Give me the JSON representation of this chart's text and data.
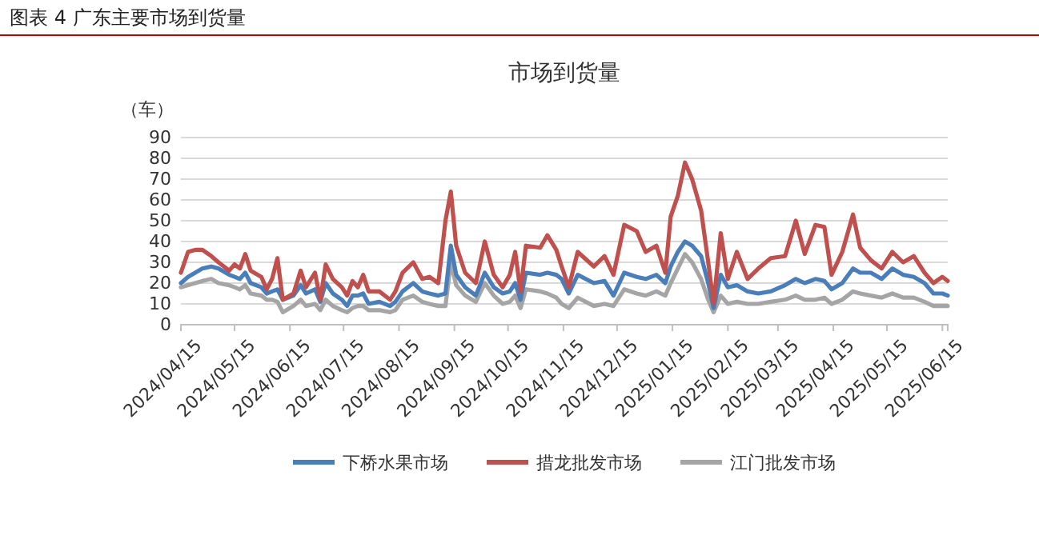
{
  "chart_data": {
    "type": "line",
    "title": "图表 4 广东主要市场到货量",
    "subtitle": "市场到货量",
    "ylabel": "（车）",
    "x": [
      "2024-04-15",
      "2024-04-19",
      "2024-04-23",
      "2024-04-27",
      "2024-05-02",
      "2024-05-06",
      "2024-05-12",
      "2024-05-15",
      "2024-05-18",
      "2024-05-21",
      "2024-05-24",
      "2024-05-30",
      "2024-06-02",
      "2024-06-05",
      "2024-06-08",
      "2024-06-11",
      "2024-06-17",
      "2024-06-21",
      "2024-06-24",
      "2024-06-29",
      "2024-07-02",
      "2024-07-05",
      "2024-07-09",
      "2024-07-14",
      "2024-07-17",
      "2024-07-20",
      "2024-07-23",
      "2024-07-26",
      "2024-07-29",
      "2024-08-04",
      "2024-08-10",
      "2024-08-13",
      "2024-08-17",
      "2024-08-23",
      "2024-08-28",
      "2024-09-01",
      "2024-09-06",
      "2024-09-10",
      "2024-09-13",
      "2024-09-16",
      "2024-09-21",
      "2024-09-27",
      "2024-10-02",
      "2024-10-07",
      "2024-10-12",
      "2024-10-16",
      "2024-10-19",
      "2024-10-22",
      "2024-10-25",
      "2024-11-02",
      "2024-11-06",
      "2024-11-11",
      "2024-11-14",
      "2024-11-18",
      "2024-11-23",
      "2024-12-02",
      "2024-12-08",
      "2024-12-13",
      "2024-12-19",
      "2024-12-26",
      "2024-12-31",
      "2025-01-06",
      "2025-01-11",
      "2025-01-14",
      "2025-01-18",
      "2025-01-22",
      "2025-01-26",
      "2025-01-31",
      "2025-02-04",
      "2025-02-07",
      "2025-02-11",
      "2025-02-15",
      "2025-02-20",
      "2025-02-26",
      "2025-03-04",
      "2025-03-11",
      "2025-03-19",
      "2025-03-25",
      "2025-03-30",
      "2025-04-05",
      "2025-04-10",
      "2025-04-14",
      "2025-04-20",
      "2025-04-26",
      "2025-04-30",
      "2025-05-06",
      "2025-05-12",
      "2025-05-18",
      "2025-05-24",
      "2025-05-30",
      "2025-06-05",
      "2025-06-10",
      "2025-06-15",
      "2025-06-18"
    ],
    "series": [
      {
        "name": "下桥水果市场",
        "color": "#4a7ebb",
        "values": [
          20,
          23,
          25,
          27,
          28,
          27,
          24,
          23,
          22,
          25,
          20,
          18,
          15,
          16,
          17,
          12,
          14,
          19,
          15,
          17,
          11,
          20,
          15,
          12,
          9,
          14,
          14,
          15,
          10,
          11,
          9,
          11,
          16,
          20,
          16,
          15,
          14,
          15,
          38,
          24,
          18,
          14,
          25,
          18,
          15,
          16,
          20,
          12,
          25,
          24,
          25,
          24,
          22,
          15,
          24,
          20,
          21,
          14,
          25,
          23,
          22,
          24,
          20,
          28,
          35,
          40,
          38,
          33,
          20,
          8,
          24,
          18,
          19,
          16,
          15,
          16,
          19,
          22,
          20,
          22,
          21,
          17,
          20,
          27,
          25,
          25,
          22,
          27,
          24,
          23,
          20,
          15,
          15,
          14
        ]
      },
      {
        "name": "措龙批发市场",
        "color": "#c0504d",
        "values": [
          25,
          35,
          36,
          36,
          33,
          30,
          26,
          29,
          27,
          34,
          26,
          23,
          17,
          22,
          32,
          12,
          15,
          26,
          18,
          25,
          12,
          29,
          22,
          18,
          14,
          21,
          18,
          24,
          16,
          16,
          12,
          16,
          25,
          30,
          22,
          23,
          20,
          50,
          64,
          38,
          25,
          20,
          40,
          24,
          18,
          24,
          35,
          16,
          38,
          37,
          43,
          36,
          28,
          18,
          35,
          28,
          33,
          24,
          48,
          45,
          35,
          38,
          25,
          52,
          62,
          78,
          70,
          55,
          30,
          10,
          44,
          22,
          35,
          22,
          27,
          32,
          33,
          50,
          34,
          48,
          47,
          24,
          35,
          53,
          37,
          31,
          27,
          35,
          30,
          33,
          25,
          20,
          23,
          21
        ]
      },
      {
        "name": "江门批发市场",
        "color": "#a5a5a5",
        "values": [
          18,
          19,
          20,
          21,
          22,
          20,
          19,
          18,
          17,
          19,
          15,
          14,
          12,
          12,
          11,
          6,
          9,
          12,
          9,
          10,
          7,
          12,
          9,
          7,
          6,
          8,
          9,
          9,
          7,
          7,
          6,
          7,
          12,
          14,
          11,
          10,
          9,
          9,
          30,
          19,
          14,
          11,
          20,
          14,
          10,
          11,
          14,
          8,
          17,
          16,
          15,
          13,
          10,
          8,
          13,
          9,
          10,
          9,
          17,
          15,
          14,
          16,
          14,
          20,
          27,
          34,
          30,
          22,
          12,
          6,
          14,
          10,
          11,
          10,
          10,
          11,
          12,
          14,
          12,
          12,
          13,
          10,
          12,
          16,
          15,
          14,
          13,
          15,
          13,
          13,
          11,
          9,
          9,
          9
        ]
      }
    ],
    "xlim": [
      "2024-04-15",
      "2025-06-18"
    ],
    "xticks": [
      {
        "value": "2024-04-15",
        "label": "2024/04/15"
      },
      {
        "value": "2024-05-15",
        "label": "2024/05/15"
      },
      {
        "value": "2024-06-15",
        "label": "2024/06/15"
      },
      {
        "value": "2024-07-15",
        "label": "2024/07/15"
      },
      {
        "value": "2024-08-15",
        "label": "2024/08/15"
      },
      {
        "value": "2024-09-15",
        "label": "2024/09/15"
      },
      {
        "value": "2024-10-15",
        "label": "2024/10/15"
      },
      {
        "value": "2024-11-15",
        "label": "2024/11/15"
      },
      {
        "value": "2024-12-15",
        "label": "2024/12/15"
      },
      {
        "value": "2025-01-15",
        "label": "2025/01/15"
      },
      {
        "value": "2025-02-15",
        "label": "2025/02/15"
      },
      {
        "value": "2025-03-15",
        "label": "2025/03/15"
      },
      {
        "value": "2025-04-15",
        "label": "2025/04/15"
      },
      {
        "value": "2025-05-15",
        "label": "2025/05/15"
      },
      {
        "value": "2025-06-15",
        "label": "2025/06/15"
      }
    ],
    "ylim": [
      0,
      90
    ],
    "yticks": [
      0,
      10,
      20,
      30,
      40,
      50,
      60,
      70,
      80,
      90
    ],
    "grid": "y",
    "legend": "bottom",
    "marker": "none",
    "line_style": "solid"
  }
}
